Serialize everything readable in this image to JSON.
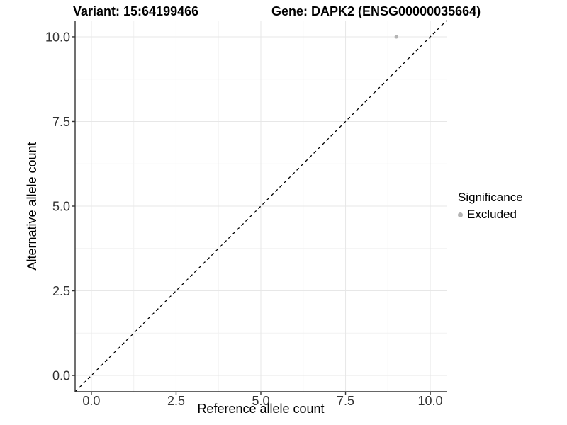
{
  "chart_data": {
    "type": "scatter",
    "title_left": "Variant: 15:64199466",
    "title_right": "Gene: DAPK2 (ENSG00000035664)",
    "xlabel": "Reference allele count",
    "ylabel": "Alternative allele count",
    "xlim": [
      -0.48,
      10.48
    ],
    "ylim": [
      -0.48,
      10.48
    ],
    "grid": true,
    "xticks": {
      "values": [
        0,
        2.5,
        5,
        7.5,
        10
      ],
      "labels": [
        "0.0",
        "2.5",
        "5.0",
        "7.5",
        "10.0"
      ]
    },
    "yticks": {
      "values": [
        0,
        2.5,
        5,
        7.5,
        10
      ],
      "labels": [
        "0.0",
        "2.5",
        "5.0",
        "7.5",
        "10.0"
      ]
    },
    "minor_tick_values": [
      1.25,
      3.75,
      6.25,
      8.75
    ],
    "points": [
      {
        "x": 9,
        "y": 10,
        "significance": "Excluded",
        "color": "#b4b4b4"
      }
    ],
    "reference_line": {
      "slope": 1,
      "intercept": 0,
      "linetype": "dashed",
      "color": "#000000"
    },
    "legend": {
      "title": "Significance",
      "position": "right",
      "items": [
        {
          "label": "Excluded",
          "color": "#b4b4b4"
        }
      ]
    },
    "colors": {
      "grid_major": "#e7e7e7",
      "grid_minor": "#f2f2f2",
      "axis_line": "#333333",
      "tick_label": "#333333",
      "point": "#b4b4b4"
    }
  }
}
